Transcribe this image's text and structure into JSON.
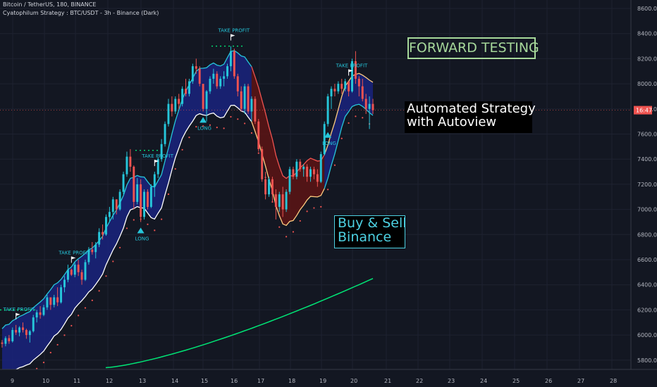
{
  "header": {
    "symbol_line": "Bitcoin / TetherUS, 180, BINANCE",
    "strategy_line": "Cyatophilum Strategy : BTC/USDT - 3h - Binance (Dark)"
  },
  "overlays": {
    "forward_testing": "FORWARD TESTING",
    "automated_line1": "Automated Strategy",
    "automated_line2": "with Autoview",
    "buysell_line1": "Buy & Sell",
    "buysell_line2": "Binance"
  },
  "price_label": {
    "value": "16:47"
  },
  "colors": {
    "background": "#131722",
    "up": "#26c6da",
    "down": "#ef5350",
    "band_bull": "#1a237e",
    "band_bear": "#5d1414",
    "long_term_ma": "#00e676",
    "forward_box": "#a6d89a"
  },
  "chart_data": {
    "type": "candlestick",
    "y_axis": {
      "range": [
        5700,
        8650
      ],
      "ticks": [
        "5800.00",
        "6000.00",
        "6200.00",
        "6400.00",
        "6600.00",
        "6800.00",
        "7000.00",
        "7200.00",
        "7400.00",
        "7600.00",
        "7800.00",
        "8000.00",
        "8200.00",
        "8400.00",
        "8600.00"
      ]
    },
    "x_axis": {
      "ticks": [
        "9",
        "10",
        "11",
        "12",
        "13",
        "14",
        "15",
        "16",
        "17",
        "18",
        "19",
        "20",
        "21",
        "22",
        "23",
        "24",
        "25",
        "26",
        "27",
        "28"
      ]
    },
    "candles": [
      [
        5940,
        5960,
        5900,
        5930
      ],
      [
        5930,
        5990,
        5910,
        5975
      ],
      [
        5975,
        6000,
        5930,
        5950
      ],
      [
        5950,
        6060,
        5940,
        6040
      ],
      [
        6040,
        6080,
        6000,
        6020
      ],
      [
        6020,
        6070,
        5990,
        6060
      ],
      [
        6060,
        6100,
        6020,
        6040
      ],
      [
        6040,
        6050,
        5970,
        6000
      ],
      [
        6000,
        6040,
        5940,
        6030
      ],
      [
        6030,
        6160,
        6020,
        6140
      ],
      [
        6140,
        6200,
        6100,
        6180
      ],
      [
        6180,
        6230,
        6130,
        6160
      ],
      [
        6160,
        6240,
        6150,
        6220
      ],
      [
        6220,
        6320,
        6200,
        6300
      ],
      [
        6300,
        6290,
        6200,
        6240
      ],
      [
        6240,
        6320,
        6220,
        6300
      ],
      [
        6300,
        6380,
        6230,
        6260
      ],
      [
        6260,
        6400,
        6250,
        6380
      ],
      [
        6380,
        6470,
        6340,
        6440
      ],
      [
        6440,
        6560,
        6420,
        6520
      ],
      [
        6520,
        6530,
        6470,
        6480
      ],
      [
        6480,
        6580,
        6460,
        6560
      ],
      [
        6560,
        6600,
        6470,
        6500
      ],
      [
        6500,
        6520,
        6400,
        6440
      ],
      [
        6440,
        6600,
        6430,
        6580
      ],
      [
        6580,
        6700,
        6560,
        6680
      ],
      [
        6680,
        6740,
        6640,
        6660
      ],
      [
        6660,
        6740,
        6610,
        6720
      ],
      [
        6720,
        6850,
        6700,
        6820
      ],
      [
        6820,
        6880,
        6760,
        6800
      ],
      [
        6800,
        6960,
        6790,
        6940
      ],
      [
        6940,
        7020,
        6900,
        6980
      ],
      [
        6980,
        7100,
        6920,
        7080
      ],
      [
        7080,
        7080,
        6960,
        7000
      ],
      [
        7000,
        7160,
        6990,
        7140
      ],
      [
        7140,
        7300,
        7120,
        7280
      ],
      [
        7280,
        7460,
        7260,
        7420
      ],
      [
        7420,
        7480,
        7300,
        7340
      ],
      [
        7340,
        7350,
        7000,
        7060
      ],
      [
        7060,
        7250,
        7040,
        7200
      ],
      [
        7200,
        7240,
        6900,
        6940
      ],
      [
        6940,
        7160,
        6920,
        7140
      ],
      [
        7140,
        7160,
        7000,
        7020
      ],
      [
        7020,
        7200,
        7010,
        7180
      ],
      [
        7180,
        7300,
        7100,
        7280
      ],
      [
        7280,
        7420,
        7250,
        7400
      ],
      [
        7400,
        7560,
        7380,
        7520
      ],
      [
        7520,
        7700,
        7500,
        7680
      ],
      [
        7680,
        7880,
        7660,
        7840
      ],
      [
        7840,
        7900,
        7740,
        7780
      ],
      [
        7780,
        7900,
        7760,
        7880
      ],
      [
        7880,
        7920,
        7800,
        7840
      ],
      [
        7840,
        7980,
        7820,
        7960
      ],
      [
        7960,
        8040,
        7900,
        7920
      ],
      [
        7920,
        8040,
        7900,
        8020
      ],
      [
        8020,
        8160,
        8000,
        8140
      ],
      [
        8140,
        8200,
        8080,
        8120
      ],
      [
        8120,
        8140,
        7980,
        8000
      ],
      [
        8000,
        7990,
        7780,
        7800
      ],
      [
        7800,
        7950,
        7700,
        7940
      ],
      [
        7940,
        8060,
        7920,
        8040
      ],
      [
        8040,
        8120,
        8000,
        8080
      ],
      [
        8080,
        8100,
        7960,
        7980
      ],
      [
        7980,
        8060,
        7960,
        8040
      ],
      [
        8040,
        8100,
        7980,
        8060
      ],
      [
        8060,
        8160,
        8040,
        8140
      ],
      [
        8140,
        8300,
        8100,
        8260
      ],
      [
        8260,
        8280,
        8040,
        8060
      ],
      [
        8060,
        8080,
        7900,
        7940
      ],
      [
        7940,
        7980,
        7780,
        7800
      ],
      [
        7800,
        8000,
        7760,
        7980
      ],
      [
        7980,
        8000,
        7760,
        7780
      ],
      [
        7780,
        7900,
        7700,
        7880
      ],
      [
        7880,
        7900,
        7680,
        7700
      ],
      [
        7700,
        7720,
        7460,
        7480
      ],
      [
        7480,
        7500,
        7220,
        7240
      ],
      [
        7240,
        7300,
        7080,
        7120
      ],
      [
        7120,
        7260,
        7100,
        7240
      ],
      [
        7240,
        7260,
        7060,
        7120
      ],
      [
        7120,
        7160,
        6920,
        7020
      ],
      [
        7020,
        7140,
        6980,
        7120
      ],
      [
        7120,
        7180,
        6940,
        7000
      ],
      [
        7000,
        7160,
        6980,
        7140
      ],
      [
        7140,
        7340,
        7120,
        7320
      ],
      [
        7320,
        7340,
        7240,
        7260
      ],
      [
        7260,
        7400,
        7240,
        7380
      ],
      [
        7380,
        7400,
        7300,
        7320
      ],
      [
        7320,
        7360,
        7260,
        7340
      ],
      [
        7340,
        7360,
        7220,
        7260
      ],
      [
        7260,
        7340,
        7220,
        7320
      ],
      [
        7320,
        7340,
        7240,
        7280
      ],
      [
        7280,
        7320,
        7180,
        7220
      ],
      [
        7220,
        7460,
        7210,
        7440
      ],
      [
        7440,
        7700,
        7430,
        7680
      ],
      [
        7680,
        7920,
        7660,
        7900
      ],
      [
        7900,
        7980,
        7800,
        7960
      ],
      [
        7960,
        8000,
        7900,
        7940
      ],
      [
        7940,
        8020,
        7920,
        8000
      ],
      [
        8000,
        8040,
        7920,
        7960
      ],
      [
        7960,
        8040,
        7940,
        8020
      ],
      [
        8020,
        8020,
        7900,
        7940
      ],
      [
        7940,
        8200,
        7930,
        8180
      ],
      [
        8180,
        8260,
        8000,
        8040
      ],
      [
        8040,
        8060,
        7900,
        7980
      ],
      [
        7980,
        8040,
        7860,
        7880
      ],
      [
        7880,
        7920,
        7760,
        7800
      ],
      [
        7800,
        7900,
        7640,
        7840
      ],
      [
        7840,
        7880,
        7760,
        7790
      ]
    ],
    "take_profit_labels": [
      "TAKE PROFIT",
      "TAKE PROFIT",
      "TAKE PROFIT",
      "TAKE PROFIT",
      "TAKE PROFIT"
    ],
    "long_labels": [
      "LONG",
      "LONG",
      "LONG"
    ]
  }
}
